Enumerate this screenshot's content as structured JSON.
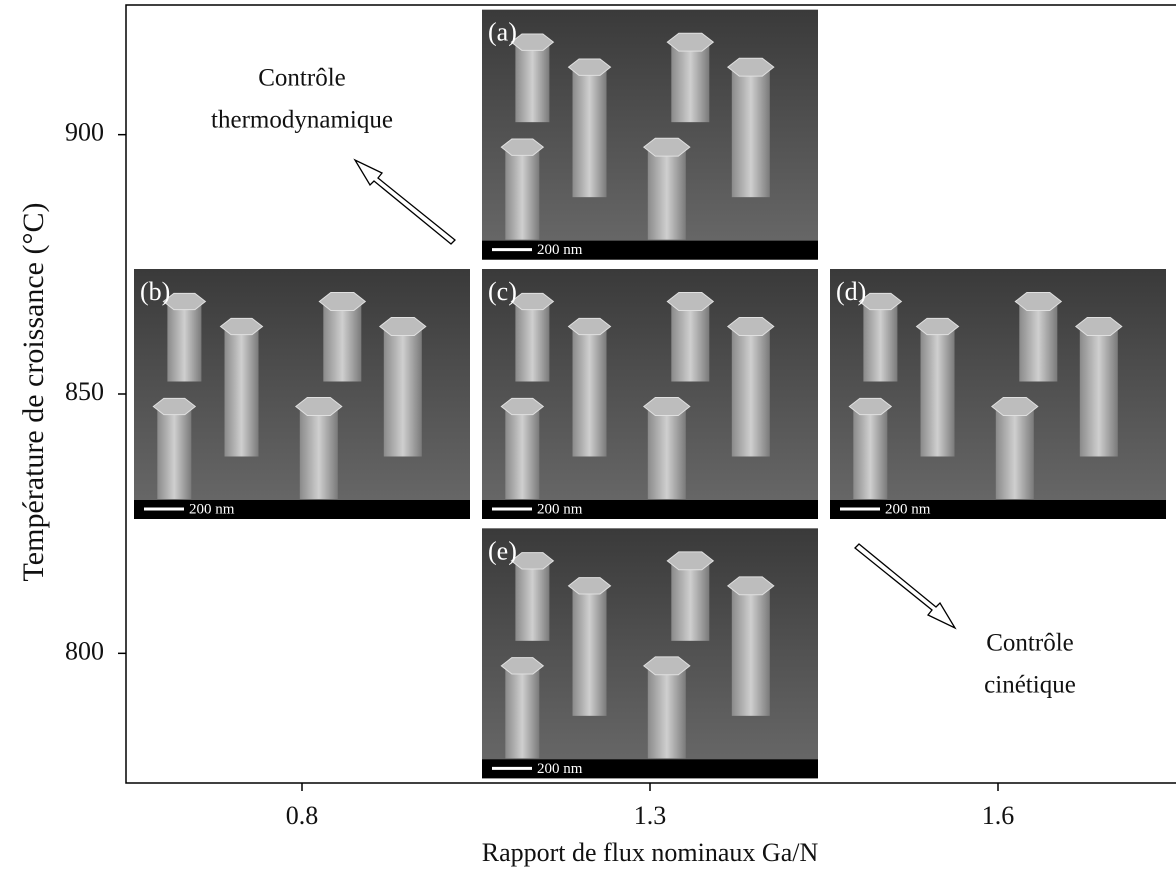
{
  "chart_data": {
    "type": "image-panels",
    "x_label": "Rapport de flux nominaux Ga/N",
    "y_label": "Température de croissance (°C)",
    "categories": [
      "0.8",
      "1.3",
      "1.6"
    ],
    "ylim": [
      775,
      925
    ],
    "yticks": [
      800,
      850,
      900
    ],
    "panels": [
      {
        "label": "(a)",
        "scale_bar": "200 nm",
        "x": "1.3",
        "y": 900
      },
      {
        "label": "(b)",
        "scale_bar": "200 nm",
        "x": "0.8",
        "y": 850
      },
      {
        "label": "(c)",
        "scale_bar": "200 nm",
        "x": "1.3",
        "y": 850
      },
      {
        "label": "(d)",
        "scale_bar": "200 nm",
        "x": "1.6",
        "y": 850
      },
      {
        "label": "(e)",
        "scale_bar": "200 nm",
        "x": "1.3",
        "y": 800
      }
    ],
    "annotations": [
      {
        "lines": [
          "Contrôle",
          "thermodynamique"
        ]
      },
      {
        "lines": [
          "Contrôle",
          "cinétique"
        ]
      }
    ]
  }
}
